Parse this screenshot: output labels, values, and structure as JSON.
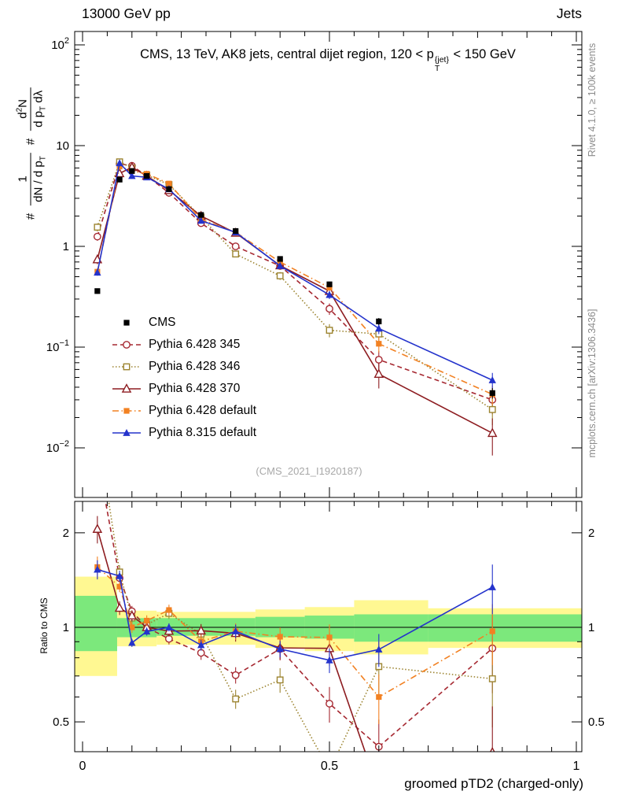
{
  "header": {
    "left": "13000 GeV pp",
    "right": "Jets"
  },
  "title": {
    "prefix": "CMS, 13 TeV, AK8 jets, central dijet region, 120 < p",
    "sup": "{jet}",
    "sub": "T",
    "suffix": " < 150 GeV"
  },
  "watermark": "(CMS_2021_I1920187)",
  "side_notes": {
    "rivet": "Rivet 4.1.0, ≥ 100k events",
    "mcplots": "mcplots.cern.ch [arXiv:1306.3436]",
    "color": "#8b8b8b"
  },
  "ylabel_main": {
    "hash1": "#",
    "frac1_num": "1",
    "frac1_den_a": "dN / d p",
    "frac1_den_sub": "T",
    "hash2": "#",
    "frac2_num_a": "d",
    "frac2_num_sup": "2",
    "frac2_num_b": "N",
    "frac2_den_a": "d p",
    "frac2_den_sub": "T",
    "frac2_den_b": " dλ"
  },
  "ratio_panel": {
    "ylabel": "Ratio to CMS",
    "yticks": [
      {
        "label": "0.5",
        "v": 0.5
      },
      {
        "label": "1",
        "v": 1
      },
      {
        "label": "2",
        "v": 2
      }
    ],
    "minor_yticks": [
      0.6,
      0.7,
      0.8,
      0.9
    ],
    "band_colors": {
      "yellow": "#fff892",
      "green": "#7ce87c"
    }
  },
  "xaxis": {
    "title": "groomed pTD2 (charged-only)",
    "major_ticks": [
      {
        "label": "0",
        "v": 0
      },
      {
        "label": "0.5",
        "v": 0.5
      },
      {
        "label": "1",
        "v": 1
      }
    ]
  },
  "yaxis_main": {
    "ticks": [
      {
        "t": "10",
        "e": "2",
        "v": 100
      },
      {
        "t": "10",
        "e": "",
        "v": 10
      },
      {
        "t": "1",
        "e": "",
        "v": 1
      },
      {
        "t": "10",
        "e": "−1",
        "v": 0.1
      },
      {
        "t": "10",
        "e": "−2",
        "v": 0.01
      }
    ]
  },
  "chart_data": {
    "type": "line",
    "title": "CMS, 13 TeV, AK8 jets, central dijet region, 120 < pT^{jet} < 150 GeV",
    "xlabel": "groomed pTD2 (charged-only)",
    "ylabel": "# 1/(dN/dpT) d²N/(dpT dλ)",
    "xlim": [
      0,
      1
    ],
    "ylog_main": [
      0.003,
      135
    ],
    "ylog_ratio": [
      0.4,
      2.52
    ],
    "legend_position": "middle-left",
    "grid": false,
    "x": [
      0.03,
      0.075,
      0.1,
      0.13,
      0.175,
      0.24,
      0.31,
      0.4,
      0.5,
      0.6,
      0.83
    ],
    "series": [
      {
        "name": "CMS",
        "color": "#000000",
        "marker": "square-filled",
        "line": "none",
        "values": [
          0.36,
          4.6,
          5.6,
          5.0,
          3.7,
          2.05,
          1.42,
          0.75,
          0.42,
          0.18,
          0.035
        ],
        "yerr_rel": [
          0.06,
          0.04,
          0.04,
          0.04,
          0.04,
          0.04,
          0.04,
          0.05,
          0.06,
          0.08,
          0.12
        ]
      },
      {
        "name": "Pythia 6.428 345",
        "color": "#a62831",
        "marker": "circle-open",
        "line": "dashed",
        "values": [
          1.25,
          6.6,
          6.3,
          5.0,
          3.4,
          1.7,
          1.0,
          0.64,
          0.24,
          0.075,
          0.03
        ],
        "yerr_rel": [
          0.09,
          0.05,
          0.04,
          0.04,
          0.04,
          0.05,
          0.06,
          0.08,
          0.13,
          0.22,
          0.28
        ]
      },
      {
        "name": "Pythia 6.428 346",
        "color": "#9c8430",
        "marker": "square-open",
        "line": "dotted",
        "values": [
          1.55,
          6.9,
          6.0,
          5.1,
          4.1,
          1.95,
          0.84,
          0.51,
          0.147,
          0.135,
          0.024
        ],
        "yerr_rel": [
          0.09,
          0.05,
          0.04,
          0.04,
          0.04,
          0.05,
          0.07,
          0.09,
          0.15,
          0.2,
          0.3
        ]
      },
      {
        "name": "Pythia 6.428 370",
        "color": "#8d1c20",
        "marker": "triangle-open",
        "line": "solid",
        "values": [
          0.74,
          5.3,
          6.1,
          5.0,
          3.6,
          2.0,
          1.36,
          0.645,
          0.36,
          0.054,
          0.014
        ],
        "yerr_rel": [
          0.1,
          0.05,
          0.04,
          0.04,
          0.04,
          0.05,
          0.06,
          0.08,
          0.12,
          0.28,
          0.4
        ]
      },
      {
        "name": "Pythia 6.428 default",
        "color": "#f28122",
        "marker": "square-filled",
        "line": "dashdot",
        "values": [
          0.56,
          6.2,
          5.6,
          5.25,
          4.2,
          1.85,
          1.38,
          0.7,
          0.39,
          0.108,
          0.034
        ],
        "yerr_rel": [
          0.08,
          0.04,
          0.04,
          0.04,
          0.04,
          0.05,
          0.06,
          0.07,
          0.1,
          0.18,
          0.22
        ]
      },
      {
        "name": "Pythia 8.315 default",
        "color": "#2433cc",
        "marker": "triangle-filled",
        "line": "solid",
        "values": [
          0.55,
          6.7,
          5.0,
          4.85,
          3.7,
          1.8,
          1.38,
          0.64,
          0.33,
          0.153,
          0.047
        ],
        "yerr_rel": [
          0.07,
          0.04,
          0.03,
          0.03,
          0.03,
          0.04,
          0.05,
          0.06,
          0.09,
          0.12,
          0.18
        ]
      }
    ],
    "ratio_reference": "CMS",
    "ratio_bands": {
      "yellow": [
        [
          0.0,
          0.07,
          0.7,
          1.45
        ],
        [
          0.07,
          0.15,
          0.87,
          1.13
        ],
        [
          0.15,
          0.35,
          0.88,
          1.12
        ],
        [
          0.35,
          0.45,
          0.86,
          1.14
        ],
        [
          0.45,
          0.55,
          0.84,
          1.16
        ],
        [
          0.55,
          0.7,
          0.82,
          1.22
        ],
        [
          0.7,
          1.0,
          0.86,
          1.15
        ]
      ],
      "green": [
        [
          0.0,
          0.07,
          0.84,
          1.26
        ],
        [
          0.07,
          0.15,
          0.93,
          1.07
        ],
        [
          0.15,
          0.35,
          0.94,
          1.07
        ],
        [
          0.35,
          0.45,
          0.93,
          1.08
        ],
        [
          0.45,
          0.55,
          0.92,
          1.09
        ],
        [
          0.55,
          0.7,
          0.9,
          1.1
        ],
        [
          0.7,
          1.0,
          0.9,
          1.1
        ]
      ]
    }
  }
}
